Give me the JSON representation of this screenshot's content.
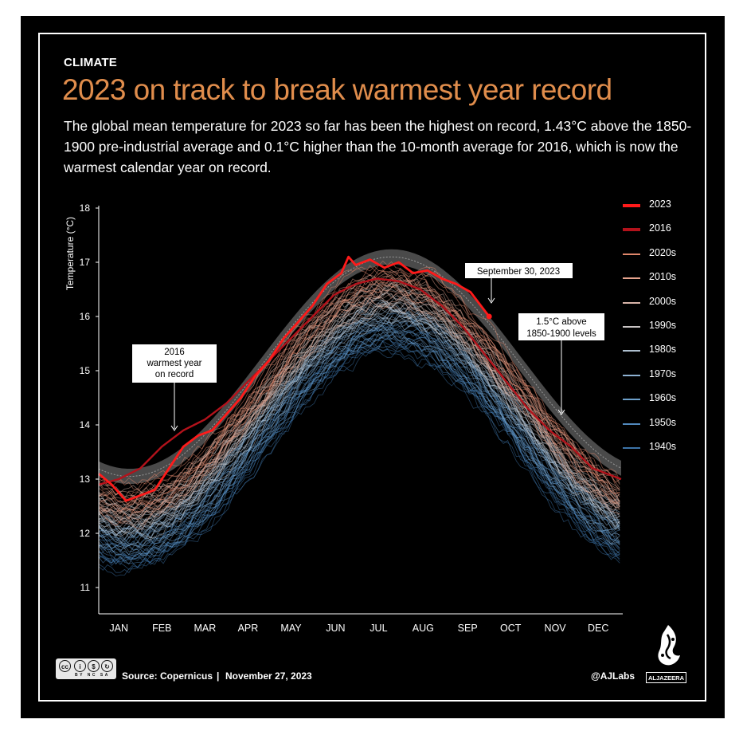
{
  "header": {
    "kicker": "CLIMATE",
    "headline": "2023 on track to break warmest year record",
    "subtitle": "The global mean temperature for 2023 so far has been the highest on record, 1.43°C above the 1850-1900 pre-industrial average and 0.1°C higher than the 10-month average for 2016, which is now the warmest calendar year on record."
  },
  "chart_data": {
    "type": "line",
    "title": "2023 on track to break warmest year record",
    "ylabel": "Temperature (°C)",
    "xlabel": "",
    "ylim": [
      10.5,
      18
    ],
    "yticks": [
      11,
      12,
      13,
      14,
      15,
      16,
      17,
      18
    ],
    "x_tick_labels": [
      "JAN",
      "FEB",
      "MAR",
      "APR",
      "MAY",
      "JUN",
      "JUL",
      "AUG",
      "SEP",
      "OCT",
      "NOV",
      "DEC"
    ],
    "x_month_mids": [
      15,
      45,
      75,
      105,
      135,
      166,
      196,
      227,
      258,
      288,
      319,
      349
    ],
    "x_range_days": [
      1,
      365
    ],
    "colors": {
      "y2023": "#ff1a1a",
      "y2016": "#b3121b",
      "band": "#4a4a4a",
      "dotted": "#9a9a9a"
    },
    "decade_curves": [
      {
        "name": "2020s",
        "color": "#e0876b",
        "min": 12.65,
        "max": 16.75
      },
      {
        "name": "2010s",
        "color": "#e6a38d",
        "min": 12.55,
        "max": 16.6
      },
      {
        "name": "2000s",
        "color": "#d8b4a8",
        "min": 12.45,
        "max": 16.45
      },
      {
        "name": "1990s",
        "color": "#c9c4c4",
        "min": 12.3,
        "max": 16.3
      },
      {
        "name": "1980s",
        "color": "#aebfcf",
        "min": 12.15,
        "max": 16.15
      },
      {
        "name": "1970s",
        "color": "#8db1d2",
        "min": 12.0,
        "max": 16.0
      },
      {
        "name": "1960s",
        "color": "#6d9fca",
        "min": 11.85,
        "max": 15.85
      },
      {
        "name": "1950s",
        "color": "#5189bd",
        "min": 11.7,
        "max": 15.7
      },
      {
        "name": "1940s",
        "color": "#3c73a8",
        "min": 11.55,
        "max": 15.55
      }
    ],
    "series": [
      {
        "name": "2023",
        "x": [
          1,
          10,
          20,
          30,
          40,
          50,
          60,
          70,
          80,
          90,
          100,
          110,
          120,
          130,
          140,
          150,
          160,
          170,
          175,
          180,
          190,
          200,
          210,
          220,
          230,
          240,
          250,
          260,
          273
        ],
        "values": [
          13.1,
          12.9,
          12.6,
          12.7,
          12.8,
          13.2,
          13.6,
          13.8,
          13.9,
          14.2,
          14.5,
          14.9,
          15.2,
          15.6,
          15.9,
          16.2,
          16.6,
          16.8,
          17.1,
          16.95,
          17.05,
          16.9,
          17.0,
          16.8,
          16.85,
          16.7,
          16.6,
          16.45,
          16.0
        ]
      },
      {
        "name": "2016",
        "x": [
          1,
          15,
          30,
          45,
          60,
          75,
          90,
          105,
          120,
          135,
          150,
          165,
          180,
          195,
          210,
          225,
          240,
          255,
          270,
          285,
          300,
          315,
          330,
          345,
          365
        ],
        "values": [
          12.9,
          13.0,
          13.2,
          13.6,
          13.9,
          14.1,
          14.4,
          14.8,
          15.2,
          15.6,
          16.0,
          16.4,
          16.6,
          16.7,
          16.65,
          16.5,
          16.2,
          15.8,
          15.3,
          14.8,
          14.3,
          13.9,
          13.6,
          13.2,
          13.0
        ]
      }
    ],
    "band_1p5": {
      "label": "1.5°C above 1850-1900 levels",
      "min": 13.05,
      "max": 17.1,
      "half_width": 0.14
    },
    "annotations": [
      {
        "id": "sep30",
        "text": "September 30, 2023"
      },
      {
        "id": "above15_line1",
        "text": "1.5°C above"
      },
      {
        "id": "above15_line2",
        "text": "1850-1900 levels"
      },
      {
        "id": "warmest_line1",
        "text": "2016"
      },
      {
        "id": "warmest_line2",
        "text": "warmest year"
      },
      {
        "id": "warmest_line3",
        "text": "on record"
      }
    ],
    "legend": [
      {
        "label": "2023",
        "color": "#ff1a1a"
      },
      {
        "label": "2016",
        "color": "#b3121b"
      },
      {
        "label": "2020s",
        "color": "#e0876b"
      },
      {
        "label": "2010s",
        "color": "#e6a38d"
      },
      {
        "label": "2000s",
        "color": "#d8b4a8"
      },
      {
        "label": "1990s",
        "color": "#c9c4c4"
      },
      {
        "label": "1980s",
        "color": "#aebfcf"
      },
      {
        "label": "1970s",
        "color": "#8db1d2"
      },
      {
        "label": "1960s",
        "color": "#6d9fca"
      },
      {
        "label": "1950s",
        "color": "#5189bd"
      },
      {
        "label": "1940s",
        "color": "#3c73a8"
      }
    ]
  },
  "footer": {
    "source": "Source: Copernicus",
    "separator": "|",
    "date": "November 27, 2023",
    "handle": "@AJLabs",
    "brand": "ALJAZEERA",
    "license_tags": "BY NC SA"
  }
}
